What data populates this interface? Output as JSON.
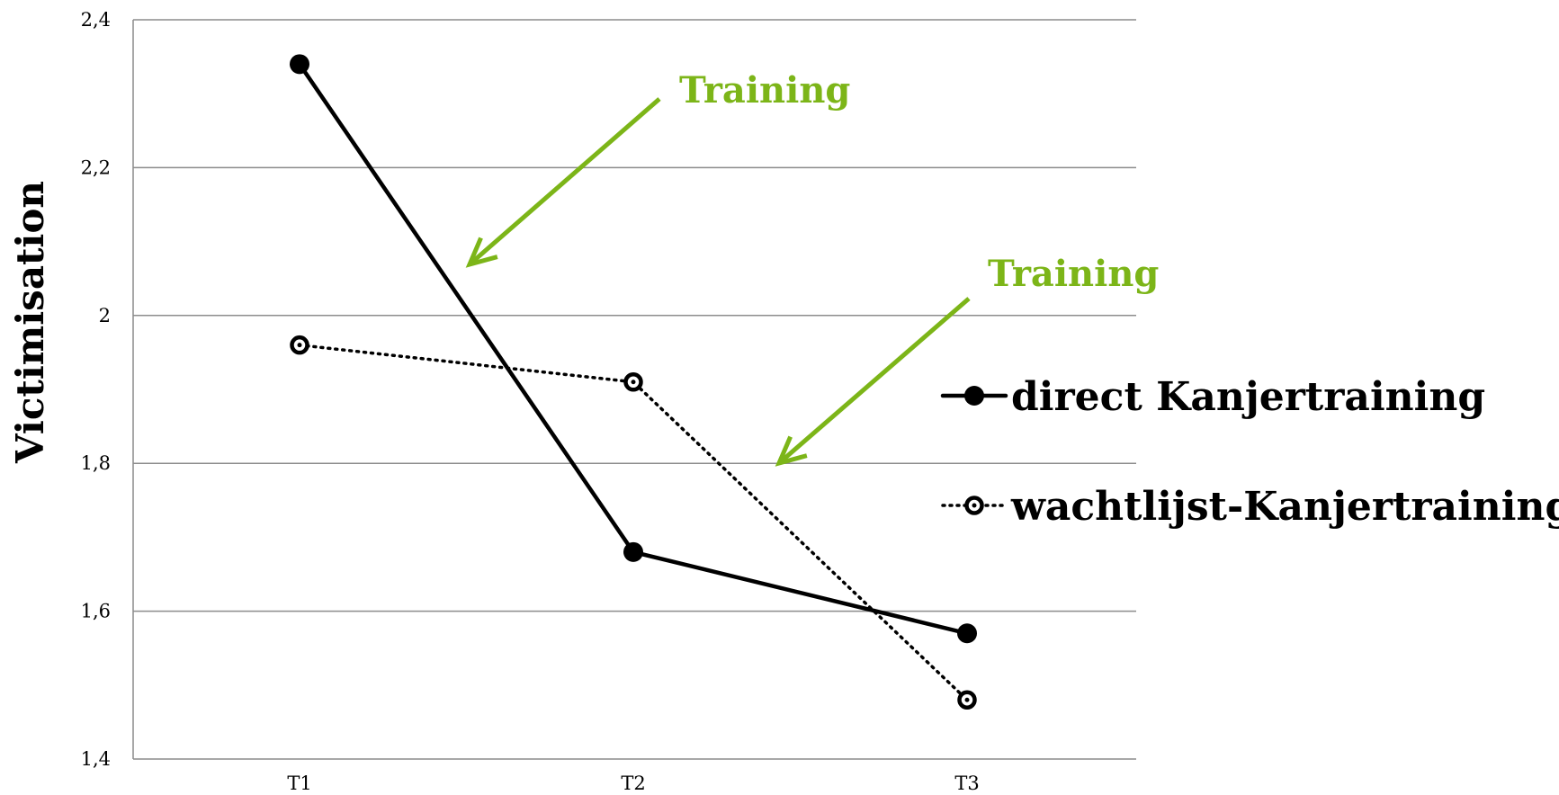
{
  "chart_data": {
    "type": "line",
    "title": "",
    "xlabel": "",
    "ylabel": "Victimisation",
    "categories": [
      "T1",
      "T2",
      "T3"
    ],
    "ylim": [
      1.4,
      2.4
    ],
    "yticks": [
      1.4,
      1.6,
      1.8,
      2.0,
      2.2,
      2.4
    ],
    "ytick_labels": [
      "1,4",
      "1,6",
      "1,8",
      "2",
      "2,2",
      "2,4"
    ],
    "grid": "horizontal",
    "legend_position": "right",
    "series": [
      {
        "name": "direct Kanjertraining",
        "values": [
          2.34,
          1.68,
          1.57
        ],
        "style": "solid",
        "marker": "filled-circle",
        "color": "#000000"
      },
      {
        "name": "wachtlijst-Kanjertraining",
        "values": [
          1.96,
          1.91,
          1.48
        ],
        "style": "dotted",
        "marker": "open-circle",
        "color": "#000000"
      }
    ],
    "annotations": [
      {
        "text": "Training",
        "between": [
          "T1",
          "T2"
        ],
        "color": "#7cb518"
      },
      {
        "text": "Training",
        "between": [
          "T2",
          "T3"
        ],
        "color": "#7cb518"
      }
    ]
  }
}
